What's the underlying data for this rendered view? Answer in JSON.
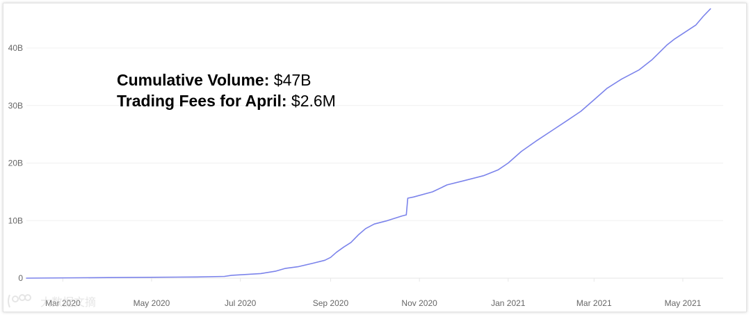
{
  "annotation": {
    "volume_label": "Cumulative Volume:",
    "volume_value": "$47B",
    "fees_label": "Trading Fees for April:",
    "fees_value": "$2.6M"
  },
  "watermark": {
    "text": "大数据文摘"
  },
  "colors": {
    "line": "#7b83eb",
    "grid": "#f0f0f0",
    "axis": "#e6e6e6",
    "tick_text": "#666666"
  },
  "chart_data": {
    "type": "line",
    "title": "",
    "xlabel": "",
    "ylabel": "",
    "x_ticks": [
      "Mar 2020",
      "May 2020",
      "Jul 2020",
      "Sep 2020",
      "Nov 2020",
      "Jan 2021",
      "Mar 2021",
      "May 2021"
    ],
    "y_ticks": [
      "0",
      "10B",
      "20B",
      "30B",
      "40B"
    ],
    "ylim": [
      0,
      48
    ],
    "y_unit": "B",
    "xlim": [
      "2020-02-05",
      "2021-05-23"
    ],
    "grid": true,
    "series": [
      {
        "x": [
          "2020-02-05",
          "2020-04-01",
          "2020-06-01",
          "2020-06-20",
          "2020-06-25",
          "2020-07-15",
          "2020-07-25",
          "2020-08-01",
          "2020-08-10",
          "2020-08-20",
          "2020-08-28",
          "2020-09-01",
          "2020-09-05",
          "2020-09-10",
          "2020-09-15",
          "2020-09-20",
          "2020-09-25",
          "2020-10-01",
          "2020-10-10",
          "2020-10-20",
          "2020-10-23",
          "2020-10-24",
          "2020-10-28",
          "2020-11-10",
          "2020-11-20",
          "2020-12-01",
          "2020-12-15",
          "2020-12-25",
          "2021-01-01",
          "2021-01-10",
          "2021-01-20",
          "2021-02-01",
          "2021-02-10",
          "2021-02-20",
          "2021-03-01",
          "2021-03-10",
          "2021-03-20",
          "2021-04-01",
          "2021-04-10",
          "2021-04-20",
          "2021-04-25",
          "2021-05-01",
          "2021-05-10",
          "2021-05-15",
          "2021-05-20"
        ],
        "y": [
          0.0,
          0.1,
          0.2,
          0.3,
          0.5,
          0.8,
          1.2,
          1.7,
          2.0,
          2.6,
          3.1,
          3.6,
          4.5,
          5.4,
          6.2,
          7.5,
          8.6,
          9.4,
          10.0,
          10.8,
          11.0,
          13.9,
          14.1,
          15.0,
          16.2,
          16.9,
          17.8,
          18.8,
          20.0,
          22.0,
          23.8,
          25.8,
          27.3,
          29.0,
          31.0,
          33.0,
          34.6,
          36.2,
          38.0,
          40.5,
          41.5,
          42.5,
          44.0,
          45.5,
          46.8
        ]
      }
    ]
  }
}
